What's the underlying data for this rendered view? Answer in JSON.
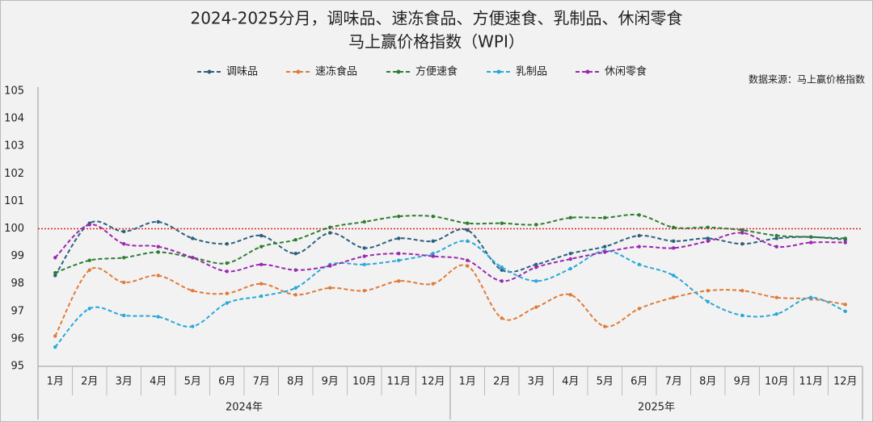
{
  "chart_data": {
    "type": "line",
    "title": "2024-2025分月，调味品、速冻食品、方便速食、乳制品、休闲零食",
    "subtitle": "马上赢价格指数（WPI）",
    "source": "数据来源：马上赢价格指数",
    "categories": [
      "1月",
      "2月",
      "3月",
      "4月",
      "5月",
      "6月",
      "7月",
      "8月",
      "9月",
      "10月",
      "11月",
      "12月",
      "1月",
      "2月",
      "3月",
      "4月",
      "5月",
      "6月",
      "7月",
      "8月",
      "9月",
      "10月",
      "11月",
      "12月"
    ],
    "x_groups": [
      "2024年",
      "2025年"
    ],
    "ylim": [
      95,
      105
    ],
    "yticks": [
      95,
      96,
      97,
      98,
      99,
      100,
      101,
      102,
      103,
      104,
      105
    ],
    "reference_line": {
      "value": 100,
      "color": "#e02020"
    },
    "legend": "top",
    "series": [
      {
        "name": "调味品",
        "color": "#2b5f7e",
        "values": [
          98.3,
          100.2,
          99.9,
          100.25,
          99.65,
          99.45,
          99.75,
          99.1,
          99.85,
          99.3,
          99.65,
          99.55,
          99.95,
          98.5,
          98.7,
          99.1,
          99.35,
          99.75,
          99.55,
          99.65,
          99.45,
          99.65,
          99.7,
          99.6
        ]
      },
      {
        "name": "速冻食品",
        "color": "#e07b39",
        "values": [
          96.1,
          98.5,
          98.05,
          98.3,
          97.75,
          97.65,
          98.0,
          97.6,
          97.85,
          97.75,
          98.1,
          98.0,
          98.65,
          96.75,
          97.15,
          97.6,
          96.45,
          97.1,
          97.5,
          97.75,
          97.75,
          97.5,
          97.45,
          97.25
        ]
      },
      {
        "name": "方便速食",
        "color": "#2e7d32",
        "values": [
          98.4,
          98.85,
          98.95,
          99.15,
          98.95,
          98.75,
          99.35,
          99.6,
          100.05,
          100.25,
          100.45,
          100.45,
          100.2,
          100.2,
          100.15,
          100.4,
          100.4,
          100.5,
          100.05,
          100.05,
          99.95,
          99.75,
          99.7,
          99.65
        ]
      },
      {
        "name": "乳制品",
        "color": "#29a8d8",
        "values": [
          95.7,
          97.1,
          96.85,
          96.8,
          96.45,
          97.3,
          97.55,
          97.85,
          98.7,
          98.7,
          98.85,
          99.1,
          99.55,
          98.6,
          98.1,
          98.55,
          99.2,
          98.7,
          98.3,
          97.35,
          96.85,
          96.9,
          97.5,
          97.0
        ]
      },
      {
        "name": "休闲零食",
        "color": "#9c27b0",
        "values": [
          98.95,
          100.15,
          99.45,
          99.35,
          98.95,
          98.45,
          98.7,
          98.5,
          98.65,
          99.0,
          99.1,
          99.0,
          98.85,
          98.1,
          98.6,
          98.9,
          99.15,
          99.35,
          99.3,
          99.55,
          99.85,
          99.35,
          99.5,
          99.5
        ]
      }
    ]
  }
}
